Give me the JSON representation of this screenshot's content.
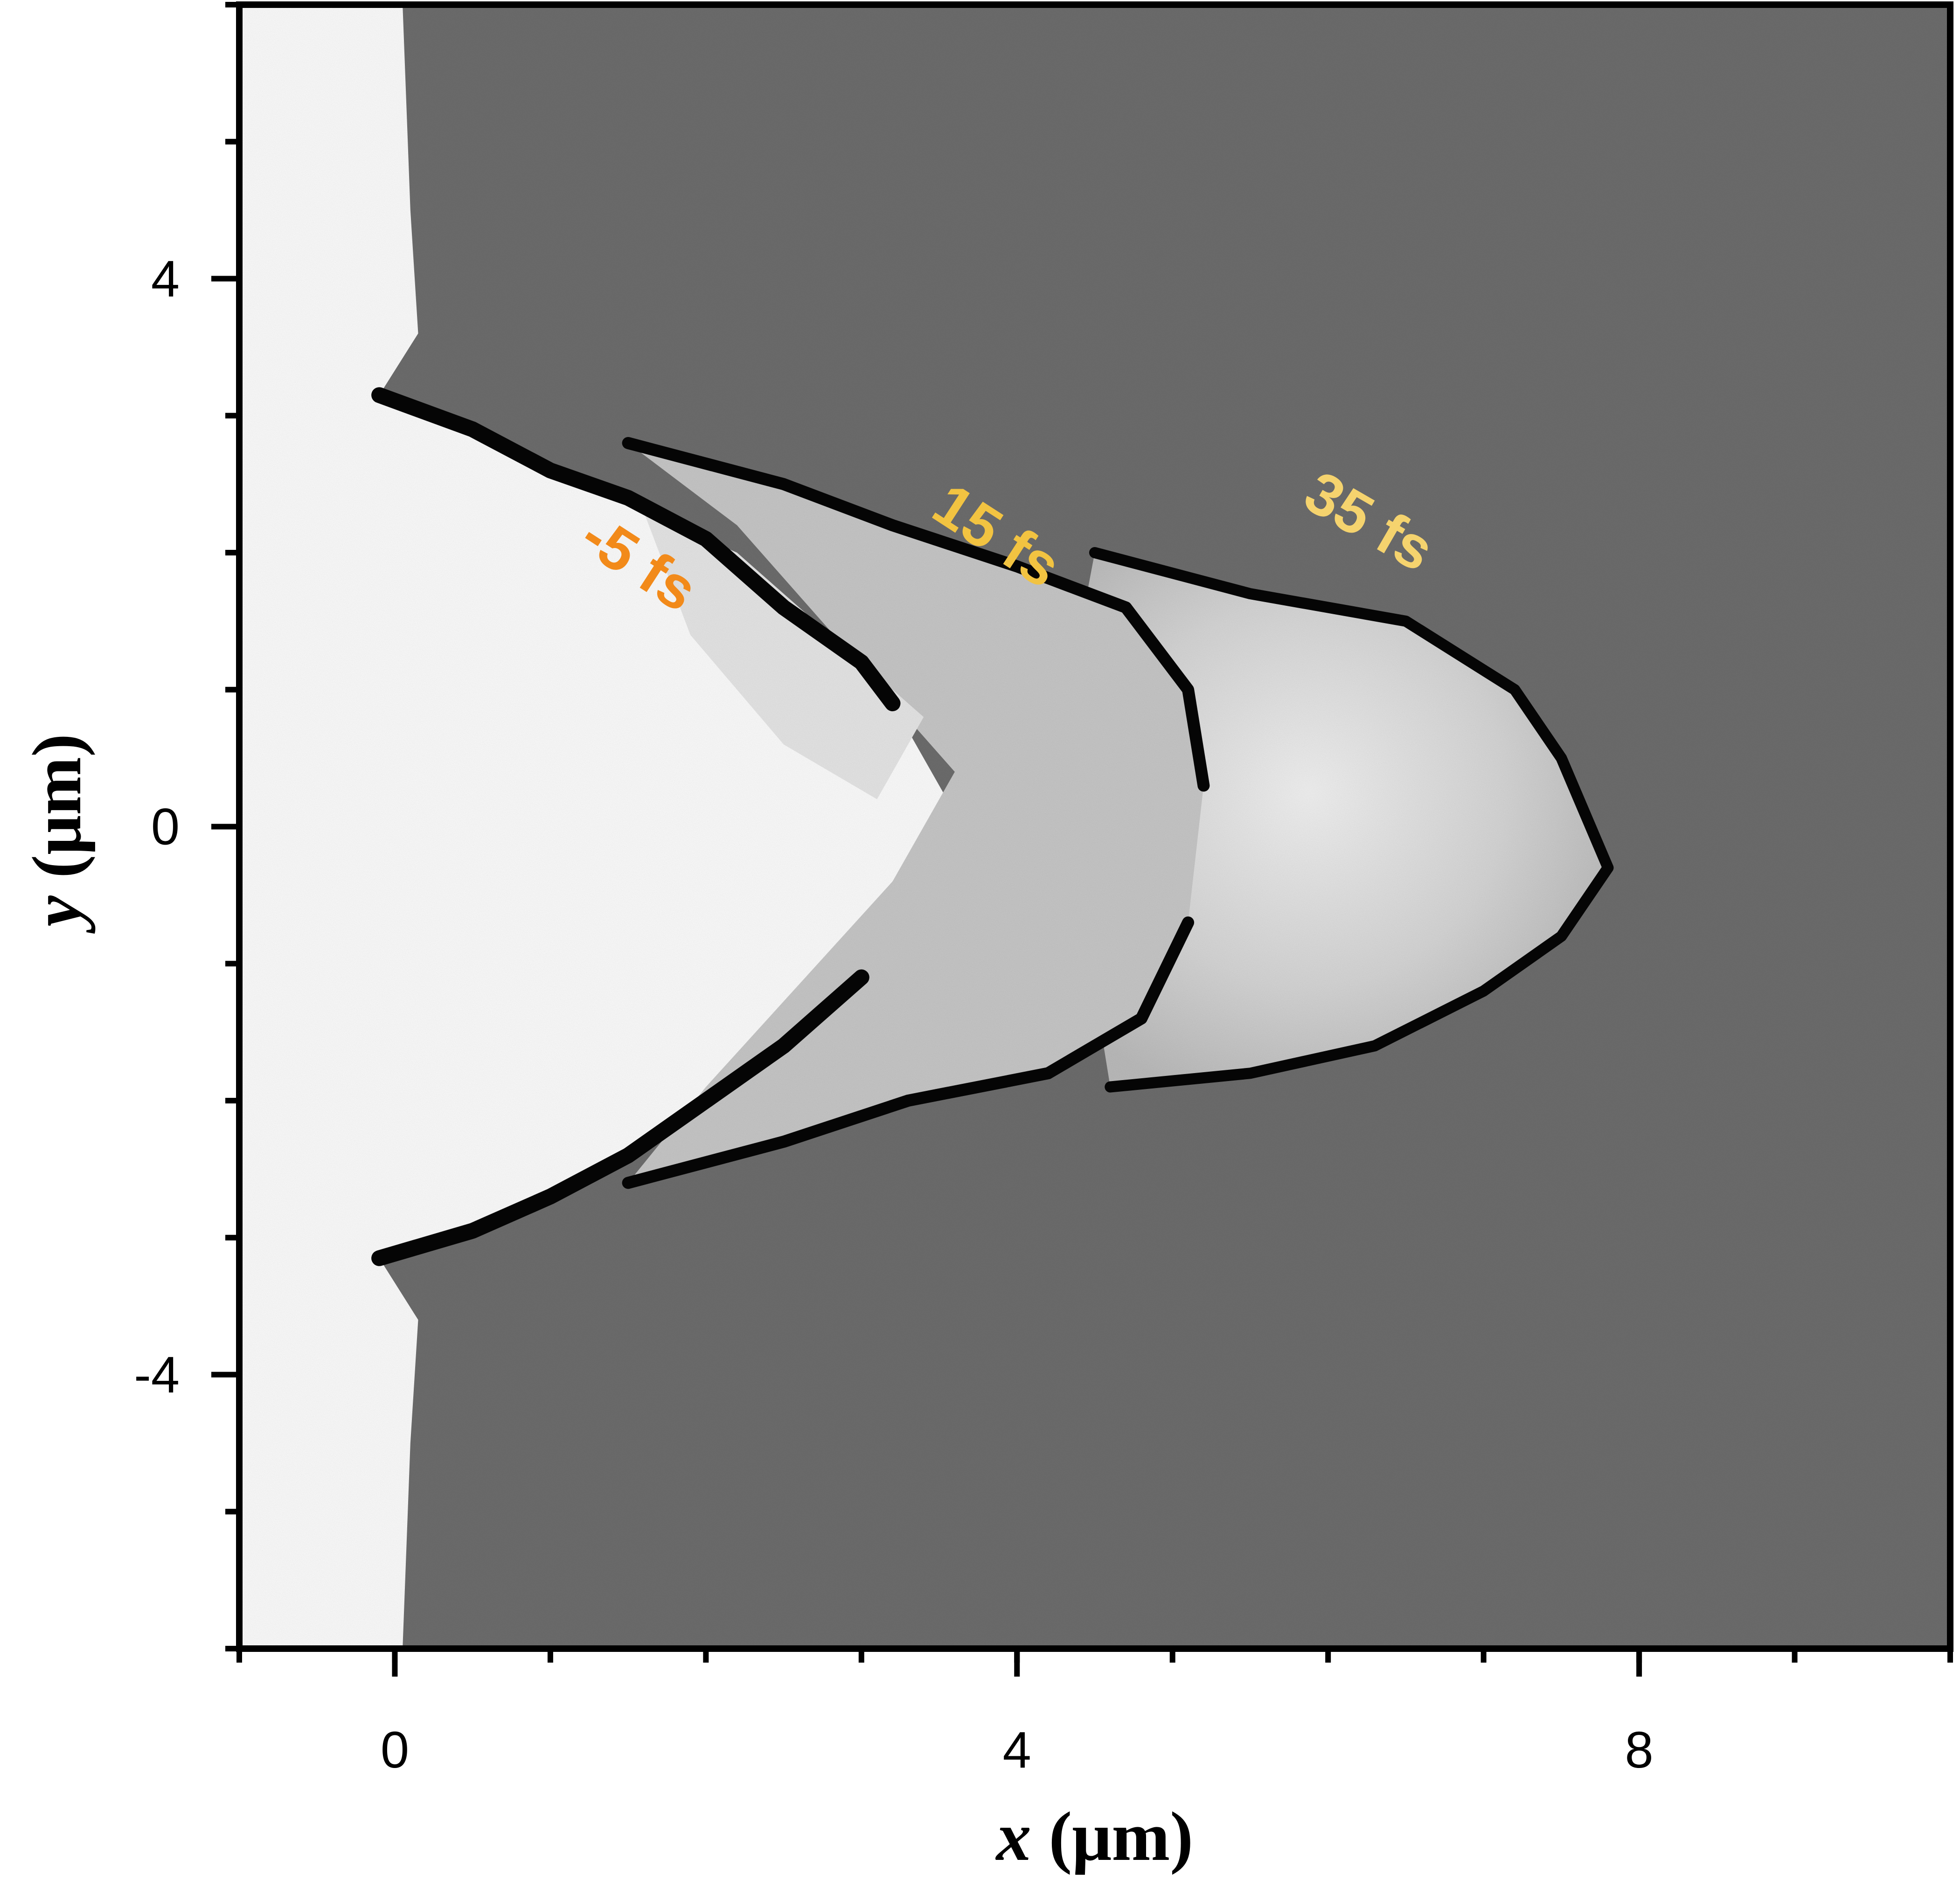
{
  "chart_data": {
    "type": "heatmap",
    "colormap": "grayscale",
    "xlabel_var": "x",
    "xlabel_unit": " (μm)",
    "ylabel_var": "y",
    "ylabel_unit": " (μm)",
    "xlim": [
      -1,
      10
    ],
    "ylim": [
      -6,
      6
    ],
    "x_ticks": [
      {
        "value": 0,
        "label": "0"
      },
      {
        "value": 4,
        "label": "4"
      },
      {
        "value": 8,
        "label": "8"
      }
    ],
    "x_minor_step": 1,
    "y_ticks": [
      {
        "value": 4,
        "label": "4"
      },
      {
        "value": 0,
        "label": "0"
      },
      {
        "value": -4,
        "label": "-4"
      }
    ],
    "y_minor_step": 1,
    "background_level": "#6e6e6e",
    "annotations": [
      {
        "text": "-5 fs",
        "x": 1.5,
        "y": 1.8,
        "color": "#f28a1a",
        "rotation_deg": 33
      },
      {
        "text": "15 fs",
        "x": 3.8,
        "y": 2.0,
        "color": "#f2c341",
        "rotation_deg": 33
      },
      {
        "text": "35 fs",
        "x": 6.2,
        "y": 2.1,
        "color": "#f5d36e",
        "rotation_deg": 30
      }
    ],
    "front_curves": [
      {
        "name": "t=-5 fs",
        "upper": [
          [
            -0.1,
            3.15
          ],
          [
            0.5,
            2.9
          ],
          [
            1.0,
            2.6
          ],
          [
            1.5,
            2.4
          ],
          [
            2.0,
            2.1
          ],
          [
            2.5,
            1.6
          ],
          [
            3.0,
            1.2
          ],
          [
            3.2,
            0.9
          ]
        ],
        "lower": [
          [
            -0.1,
            -3.15
          ],
          [
            0.5,
            -2.95
          ],
          [
            1.0,
            -2.7
          ],
          [
            1.5,
            -2.4
          ],
          [
            2.0,
            -2.0
          ],
          [
            2.5,
            -1.6
          ],
          [
            3.0,
            -1.1
          ]
        ]
      },
      {
        "name": "t=15 fs",
        "upper": [
          [
            1.5,
            2.8
          ],
          [
            2.5,
            2.5
          ],
          [
            3.2,
            2.2
          ],
          [
            4.0,
            1.9
          ],
          [
            4.7,
            1.6
          ],
          [
            5.1,
            1.0
          ],
          [
            5.2,
            0.3
          ]
        ],
        "lower": [
          [
            1.5,
            -2.6
          ],
          [
            2.5,
            -2.3
          ],
          [
            3.3,
            -2.0
          ],
          [
            4.2,
            -1.8
          ],
          [
            4.8,
            -1.4
          ],
          [
            5.1,
            -0.7
          ]
        ]
      },
      {
        "name": "t=35 fs",
        "upper": [
          [
            4.5,
            2.0
          ],
          [
            5.5,
            1.7
          ],
          [
            6.5,
            1.5
          ],
          [
            7.2,
            1.0
          ],
          [
            7.5,
            0.5
          ],
          [
            7.8,
            -0.3
          ]
        ],
        "lower": [
          [
            4.6,
            -1.9
          ],
          [
            5.5,
            -1.8
          ],
          [
            6.3,
            -1.6
          ],
          [
            7.0,
            -1.2
          ],
          [
            7.5,
            -0.8
          ],
          [
            7.8,
            -0.3
          ]
        ]
      }
    ]
  }
}
